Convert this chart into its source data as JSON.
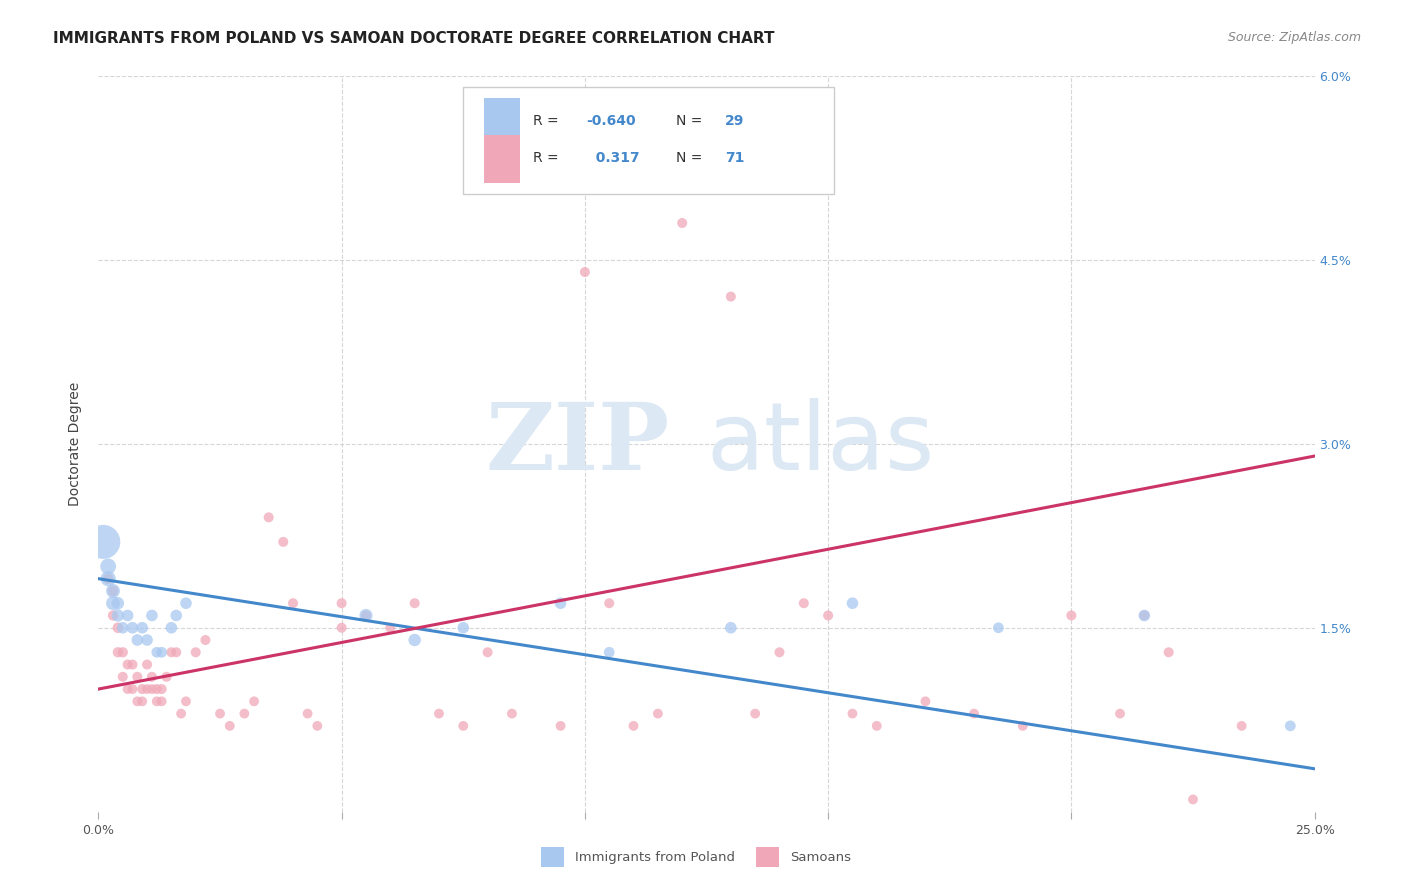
{
  "title": "IMMIGRANTS FROM POLAND VS SAMOAN DOCTORATE DEGREE CORRELATION CHART",
  "source": "Source: ZipAtlas.com",
  "ylabel": "Doctorate Degree",
  "xlim": [
    0,
    0.25
  ],
  "ylim": [
    0,
    0.06
  ],
  "xticks": [
    0.0,
    0.05,
    0.1,
    0.15,
    0.2,
    0.25
  ],
  "yticks": [
    0.0,
    0.015,
    0.03,
    0.045,
    0.06
  ],
  "ytick_labels": [
    "",
    "1.5%",
    "3.0%",
    "4.5%",
    "6.0%"
  ],
  "grid_color": "#cccccc",
  "blue_color": "#a8c8f0",
  "pink_color": "#f0a8b8",
  "blue_line_color": "#4488cc",
  "pink_line_color": "#cc3366",
  "legend_R_blue": "-0.640",
  "legend_N_blue": "29",
  "legend_R_pink": "0.317",
  "legend_N_pink": "71",
  "legend_label_blue": "Immigrants from Poland",
  "legend_label_pink": "Samoans",
  "blue_trend_x": [
    0.0,
    0.25
  ],
  "blue_trend_y": [
    0.019,
    0.0035
  ],
  "pink_trend_x": [
    0.0,
    0.25
  ],
  "pink_trend_y": [
    0.01,
    0.029
  ],
  "blue_points_x": [
    0.001,
    0.002,
    0.002,
    0.003,
    0.003,
    0.004,
    0.004,
    0.005,
    0.006,
    0.007,
    0.008,
    0.009,
    0.01,
    0.011,
    0.012,
    0.013,
    0.015,
    0.016,
    0.018,
    0.055,
    0.065,
    0.075,
    0.095,
    0.105,
    0.13,
    0.155,
    0.185,
    0.215,
    0.245
  ],
  "blue_points_y": [
    0.022,
    0.019,
    0.02,
    0.017,
    0.018,
    0.016,
    0.017,
    0.015,
    0.016,
    0.015,
    0.014,
    0.015,
    0.014,
    0.016,
    0.013,
    0.013,
    0.015,
    0.016,
    0.017,
    0.016,
    0.014,
    0.015,
    0.017,
    0.013,
    0.015,
    0.017,
    0.015,
    0.016,
    0.007
  ],
  "blue_points_size": [
    600,
    120,
    130,
    100,
    100,
    80,
    80,
    70,
    70,
    70,
    70,
    70,
    70,
    70,
    60,
    60,
    70,
    70,
    70,
    90,
    80,
    70,
    70,
    60,
    70,
    70,
    60,
    70,
    60
  ],
  "pink_points_x": [
    0.002,
    0.003,
    0.003,
    0.004,
    0.004,
    0.005,
    0.005,
    0.006,
    0.006,
    0.007,
    0.007,
    0.008,
    0.008,
    0.009,
    0.009,
    0.01,
    0.01,
    0.011,
    0.011,
    0.012,
    0.012,
    0.013,
    0.013,
    0.014,
    0.015,
    0.016,
    0.017,
    0.018,
    0.02,
    0.022,
    0.025,
    0.027,
    0.03,
    0.032,
    0.035,
    0.038,
    0.04,
    0.043,
    0.045,
    0.05,
    0.05,
    0.055,
    0.06,
    0.065,
    0.07,
    0.075,
    0.08,
    0.085,
    0.09,
    0.095,
    0.1,
    0.105,
    0.11,
    0.115,
    0.12,
    0.13,
    0.135,
    0.14,
    0.145,
    0.15,
    0.155,
    0.16,
    0.17,
    0.18,
    0.19,
    0.2,
    0.21,
    0.215,
    0.22,
    0.225,
    0.235
  ],
  "pink_points_y": [
    0.019,
    0.016,
    0.018,
    0.013,
    0.015,
    0.011,
    0.013,
    0.01,
    0.012,
    0.01,
    0.012,
    0.009,
    0.011,
    0.009,
    0.01,
    0.01,
    0.012,
    0.01,
    0.011,
    0.009,
    0.01,
    0.009,
    0.01,
    0.011,
    0.013,
    0.013,
    0.008,
    0.009,
    0.013,
    0.014,
    0.008,
    0.007,
    0.008,
    0.009,
    0.024,
    0.022,
    0.017,
    0.008,
    0.007,
    0.017,
    0.015,
    0.016,
    0.015,
    0.017,
    0.008,
    0.007,
    0.013,
    0.008,
    0.051,
    0.007,
    0.044,
    0.017,
    0.007,
    0.008,
    0.048,
    0.042,
    0.008,
    0.013,
    0.017,
    0.016,
    0.008,
    0.007,
    0.009,
    0.008,
    0.007,
    0.016,
    0.008,
    0.016,
    0.013,
    0.001,
    0.007
  ],
  "pink_points_size": [
    60,
    55,
    60,
    55,
    58,
    52,
    55,
    50,
    52,
    50,
    52,
    50,
    52,
    50,
    52,
    50,
    52,
    50,
    52,
    50,
    52,
    50,
    52,
    52,
    52,
    52,
    50,
    50,
    52,
    52,
    50,
    50,
    50,
    50,
    52,
    52,
    52,
    50,
    50,
    52,
    52,
    52,
    52,
    52,
    50,
    50,
    52,
    50,
    52,
    50,
    52,
    52,
    50,
    50,
    52,
    52,
    50,
    52,
    52,
    52,
    50,
    50,
    50,
    50,
    50,
    52,
    50,
    52,
    52,
    50,
    50
  ],
  "watermark_zip": "ZIP",
  "watermark_atlas": "atlas",
  "watermark_color": "#dce8f4",
  "background_color": "#ffffff",
  "title_fontsize": 11,
  "axis_fontsize": 10,
  "tick_fontsize": 9,
  "source_fontsize": 9
}
